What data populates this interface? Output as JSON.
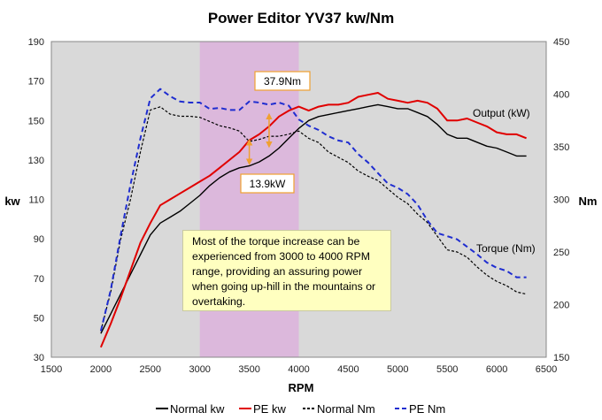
{
  "chart_data": {
    "type": "line",
    "title": "Power Editor YV37 kw/Nm",
    "xlabel": "RPM",
    "ylabel_left": "kw",
    "ylabel_right": "Nm",
    "xlim": [
      1500,
      6500
    ],
    "ylim_left": [
      30,
      190
    ],
    "ylim_right": [
      150,
      450
    ],
    "x_ticks": [
      1500,
      2000,
      2500,
      3000,
      3500,
      4000,
      4500,
      5000,
      5500,
      6000,
      6500
    ],
    "y_left_ticks": [
      30,
      50,
      70,
      90,
      110,
      130,
      150,
      170,
      190
    ],
    "y_right_ticks": [
      150,
      200,
      250,
      300,
      350,
      400,
      450
    ],
    "grid": false,
    "background_color": "#d9d9d9",
    "highlight_band": {
      "x": [
        3000,
        4000
      ],
      "color": "#dcb8dc"
    },
    "series": [
      {
        "name": "Normal kw",
        "axis": "left",
        "color": "#000000",
        "style": "solid",
        "x": [
          2000,
          2100,
          2200,
          2300,
          2400,
          2500,
          2600,
          2700,
          2800,
          2900,
          3000,
          3100,
          3200,
          3300,
          3400,
          3500,
          3600,
          3700,
          3800,
          3900,
          4000,
          4100,
          4200,
          4300,
          4400,
          4500,
          4600,
          4700,
          4800,
          4900,
          5000,
          5100,
          5200,
          5300,
          5400,
          5500,
          5600,
          5700,
          5800,
          5900,
          6000,
          6100,
          6200,
          6300
        ],
        "y": [
          42,
          52,
          62,
          72,
          82,
          92,
          98,
          101,
          104,
          108,
          112,
          117,
          121,
          124,
          126,
          127,
          129,
          132,
          136,
          141,
          146,
          150,
          152,
          153,
          154,
          155,
          156,
          157,
          158,
          157,
          156,
          156,
          154,
          152,
          148,
          143,
          141,
          141,
          139,
          137,
          136,
          134,
          132,
          132
        ]
      },
      {
        "name": "PE kw",
        "axis": "left",
        "color": "#e00000",
        "style": "solid",
        "x": [
          2000,
          2100,
          2200,
          2300,
          2400,
          2500,
          2600,
          2700,
          2800,
          2900,
          3000,
          3100,
          3200,
          3300,
          3400,
          3500,
          3600,
          3700,
          3800,
          3900,
          4000,
          4100,
          4200,
          4300,
          4400,
          4500,
          4600,
          4700,
          4800,
          4900,
          5000,
          5100,
          5200,
          5300,
          5400,
          5500,
          5600,
          5700,
          5800,
          5900,
          6000,
          6100,
          6200,
          6300
        ],
        "y": [
          35,
          47,
          60,
          74,
          88,
          98,
          107,
          110,
          113,
          116,
          119,
          122,
          126,
          130,
          134,
          140,
          143,
          147,
          152,
          155,
          157,
          155,
          157,
          158,
          158,
          159,
          162,
          163,
          164,
          161,
          160,
          159,
          160,
          159,
          156,
          150,
          150,
          151,
          149,
          147,
          144,
          143,
          143,
          141
        ]
      },
      {
        "name": "Normal Nm",
        "axis": "right",
        "color": "#000000",
        "style": "dashed",
        "x": [
          2000,
          2100,
          2200,
          2300,
          2400,
          2500,
          2600,
          2700,
          2800,
          2900,
          3000,
          3100,
          3200,
          3300,
          3400,
          3500,
          3600,
          3700,
          3800,
          3900,
          4000,
          4100,
          4200,
          4300,
          4400,
          4500,
          4600,
          4700,
          4800,
          4900,
          5000,
          5100,
          5200,
          5300,
          5400,
          5500,
          5600,
          5700,
          5800,
          5900,
          6000,
          6100,
          6200,
          6300
        ],
        "y": [
          175,
          212,
          262,
          300,
          345,
          385,
          388,
          381,
          379,
          379,
          378,
          374,
          370,
          368,
          365,
          355,
          357,
          360,
          360,
          362,
          365,
          358,
          354,
          345,
          340,
          335,
          327,
          322,
          318,
          310,
          302,
          296,
          286,
          278,
          265,
          252,
          250,
          245,
          236,
          228,
          222,
          218,
          212,
          210
        ]
      },
      {
        "name": "PE Nm",
        "axis": "right",
        "color": "#1f2dd0",
        "style": "dashed",
        "x": [
          2000,
          2100,
          2200,
          2300,
          2400,
          2500,
          2600,
          2700,
          2800,
          2900,
          3000,
          3100,
          3200,
          3300,
          3400,
          3500,
          3600,
          3700,
          3800,
          3900,
          4000,
          4100,
          4200,
          4300,
          4400,
          4500,
          4600,
          4700,
          4800,
          4900,
          5000,
          5100,
          5200,
          5300,
          5400,
          5500,
          5600,
          5700,
          5800,
          5900,
          6000,
          6100,
          6200,
          6300
        ],
        "y": [
          175,
          214,
          266,
          314,
          358,
          396,
          405,
          398,
          393,
          392,
          392,
          386,
          387,
          385,
          385,
          393,
          392,
          390,
          392,
          389,
          376,
          370,
          366,
          360,
          356,
          354,
          343,
          335,
          325,
          315,
          311,
          305,
          295,
          280,
          268,
          265,
          262,
          255,
          248,
          240,
          235,
          232,
          226,
          226
        ]
      }
    ],
    "annotations": {
      "output_label": "Output (kW)",
      "torque_label": "Torque (Nm)",
      "torque_callout": "37.9Nm",
      "power_callout": "13.9kW",
      "note": "Most of the torque increase can be experienced from 3000 to 4000 RPM range, providing an assuring power when going up-hill in the mountains or overtaking."
    },
    "legend_position": "bottom"
  }
}
